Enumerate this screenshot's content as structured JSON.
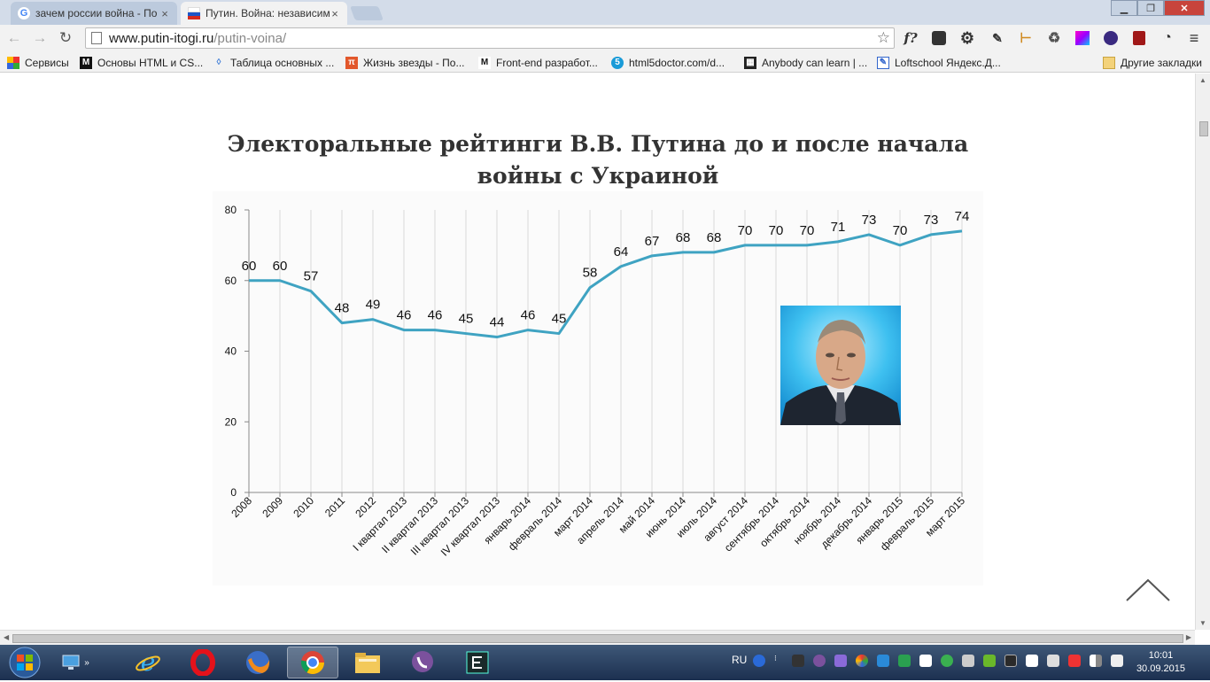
{
  "browser": {
    "tabs": [
      {
        "title": "зачем россии война - По",
        "active": false,
        "icon": "google-icon"
      },
      {
        "title": "Путин. Война: независим",
        "active": true,
        "icon": "russia-flag-icon"
      }
    ],
    "address": {
      "host": "www.putin-itogi.ru",
      "path": "/putin-voina/"
    },
    "bookmarks": [
      {
        "label": "Сервисы",
        "icon": "apps-grid-icon"
      },
      {
        "label": "Основы HTML и CS...",
        "icon": "m-logo-icon"
      },
      {
        "label": "Таблица основных ...",
        "icon": "dropper-icon"
      },
      {
        "label": "Жизнь звезды - По...",
        "icon": "pi-icon"
      },
      {
        "label": "Front-end разработ...",
        "icon": "m-logo-icon"
      },
      {
        "label": "html5doctor.com/d...",
        "icon": "html5doctor-icon"
      },
      {
        "label": "Anybody can learn | ...",
        "icon": "code-org-icon"
      },
      {
        "label": "Loftschool Яндекс.Д...",
        "icon": "doc-icon"
      }
    ],
    "other_bookmarks": "Другие закладки",
    "extension_labels": {
      "fquestion": "f?"
    },
    "colors": {
      "tabstrip": "#d3dce9",
      "toolbar": "#f2f2f2"
    }
  },
  "page": {
    "title": "Электоральные рейтинги В.В. Путина до и после начала войны с Украиной",
    "title_lines": [
      "Электоральные рейтинги В.В. Путина до и после начала",
      "войны с Украиной"
    ],
    "portrait_alt": "Путин"
  },
  "chart_data": {
    "type": "line",
    "title": "",
    "xlabel": "",
    "ylabel": "",
    "ylim": [
      0,
      80
    ],
    "yticks": [
      0,
      20,
      40,
      60,
      80
    ],
    "grid": "vertical",
    "legend": "none",
    "line_color": "#3fa3c2",
    "categories": [
      "2008",
      "2009",
      "2010",
      "2011",
      "2012",
      "I квартал 2013",
      "II квартал 2013",
      "III квартал 2013",
      "IV квартал 2013",
      "январь 2014",
      "февраль 2014",
      "март 2014",
      "апрель 2014",
      "май 2014",
      "июнь 2014",
      "июль 2014",
      "август 2014",
      "сентябрь 2014",
      "октябрь 2014",
      "ноябрь 2014",
      "декабрь 2014",
      "январь 2015",
      "февраль 2015",
      "март 2015"
    ],
    "values": [
      60,
      60,
      57,
      48,
      49,
      46,
      46,
      45,
      44,
      46,
      45,
      58,
      64,
      67,
      68,
      68,
      70,
      70,
      70,
      71,
      73,
      70,
      73,
      74
    ]
  },
  "taskbar": {
    "apps": [
      {
        "name": "show-desktop",
        "icon": "monitor-icon"
      },
      {
        "name": "internet-explorer",
        "icon": "ie-icon"
      },
      {
        "name": "opera",
        "icon": "opera-icon"
      },
      {
        "name": "firefox",
        "icon": "firefox-icon"
      },
      {
        "name": "chrome",
        "icon": "chrome-icon",
        "active": true
      },
      {
        "name": "explorer",
        "icon": "folder-icon"
      },
      {
        "name": "viber",
        "icon": "viber-icon"
      },
      {
        "name": "editor",
        "icon": "e-app-icon"
      }
    ],
    "language": "RU",
    "time": "10:01",
    "date": "30.09.2015"
  }
}
